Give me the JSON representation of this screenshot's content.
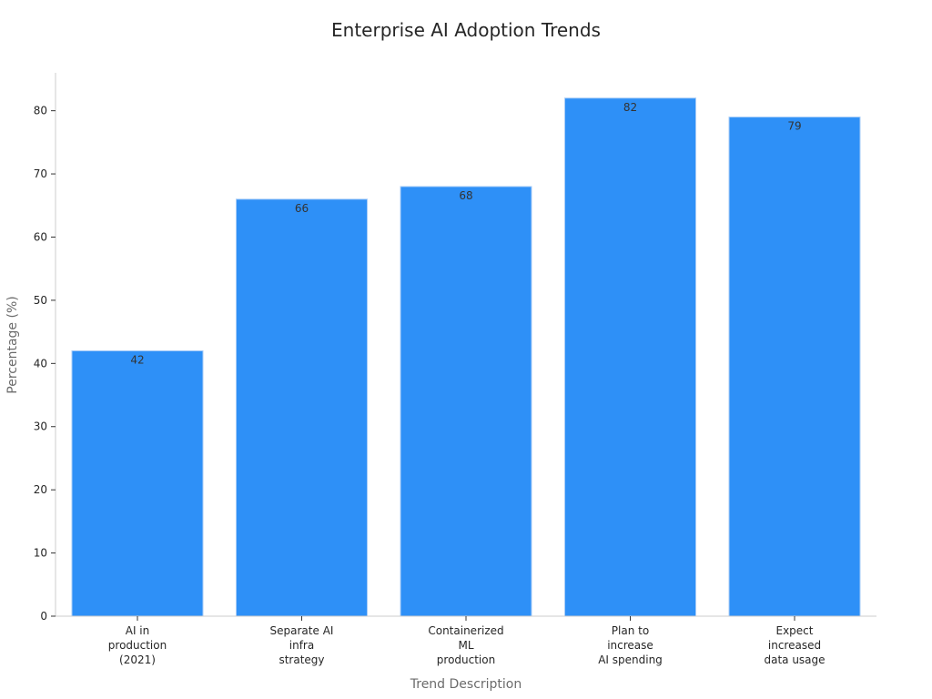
{
  "chart_data": {
    "type": "bar",
    "title": "Enterprise AI Adoption Trends",
    "xlabel": "Trend Description",
    "ylabel": "Percentage (%)",
    "categories": [
      [
        "AI in",
        "production",
        "(2021)"
      ],
      [
        "Separate AI",
        "infra",
        "strategy"
      ],
      [
        "Containerized",
        "ML",
        "production"
      ],
      [
        "Plan to",
        "increase",
        "AI spending"
      ],
      [
        "Expect",
        "increased",
        "data usage"
      ]
    ],
    "values": [
      42,
      66,
      68,
      82,
      79
    ],
    "ylim": [
      0,
      86
    ],
    "yticks": [
      0,
      10,
      20,
      30,
      40,
      50,
      60,
      70,
      80
    ],
    "grid": false,
    "bar_color": "#2e90f7"
  }
}
